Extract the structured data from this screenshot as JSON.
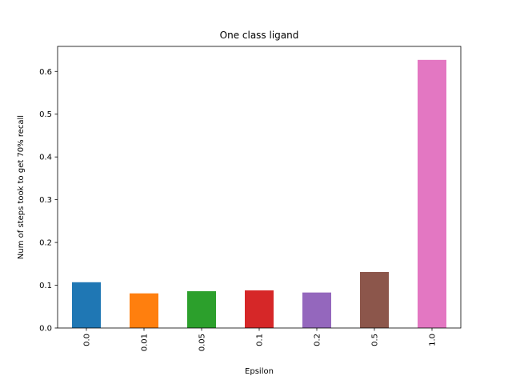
{
  "chart_data": {
    "type": "bar",
    "title": "One class ligand",
    "xlabel": "Epsilon",
    "ylabel": "Num of steps took to get 70% recall",
    "categories": [
      "0.0",
      "0.01",
      "0.05",
      "0.1",
      "0.2",
      "0.5",
      "1.0"
    ],
    "values": [
      0.107,
      0.081,
      0.086,
      0.088,
      0.083,
      0.131,
      0.627
    ],
    "colors": [
      "#1f77b4",
      "#ff7f0e",
      "#2ca02c",
      "#d62728",
      "#9467bd",
      "#8c564b",
      "#e377c2"
    ],
    "ylim": [
      0,
      0.6585
    ],
    "yticks": [
      "0.0",
      "0.1",
      "0.2",
      "0.3",
      "0.4",
      "0.5",
      "0.6"
    ],
    "grid": false,
    "legend": "none"
  }
}
